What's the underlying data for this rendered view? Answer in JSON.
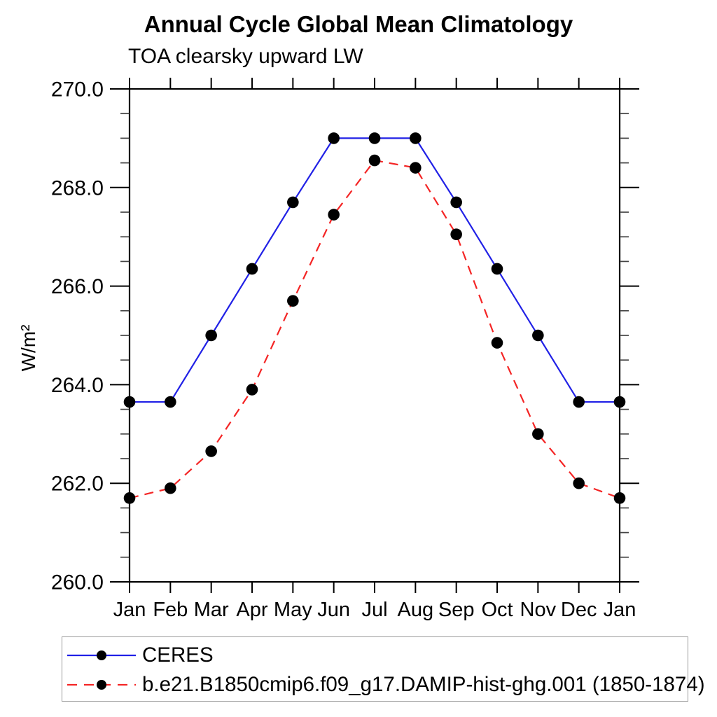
{
  "title": "Annual Cycle Global Mean Climatology",
  "subtitle": "TOA clearsky upward LW",
  "ylabel": "W/m²",
  "chart_data": {
    "type": "line",
    "categories": [
      "Jan",
      "Feb",
      "Mar",
      "Apr",
      "May",
      "Jun",
      "Jul",
      "Aug",
      "Sep",
      "Oct",
      "Nov",
      "Dec",
      "Jan"
    ],
    "ylim": [
      260,
      270
    ],
    "ytick_step": 2,
    "yminor_step": 0.5,
    "ytick_labels": [
      "260.0",
      "262.0",
      "264.0",
      "266.0",
      "268.0",
      "270.0"
    ],
    "grid": false,
    "legend_position": "bottom-left-box",
    "axis_color": "#000000",
    "tick_color": "#444444",
    "marker_radius_px": 8.3,
    "series": [
      {
        "name": "CERES",
        "color": "#2121e6",
        "line_style": "solid",
        "marker": "filled-circle",
        "marker_color": "#000000",
        "values": [
          263.65,
          263.65,
          265.0,
          266.35,
          267.7,
          269.0,
          269.0,
          269.0,
          267.7,
          266.35,
          265.0,
          263.65,
          263.65
        ]
      },
      {
        "name": "b.e21.B1850cmip6.f09_g17.DAMIP-hist-ghg.001 (1850-1874)",
        "color": "#f42525",
        "line_style": "dashed",
        "marker": "filled-circle",
        "marker_color": "#000000",
        "values": [
          261.7,
          261.9,
          262.65,
          263.9,
          265.7,
          267.45,
          268.55,
          268.4,
          267.05,
          264.85,
          263.0,
          262.0,
          261.7
        ]
      }
    ]
  }
}
